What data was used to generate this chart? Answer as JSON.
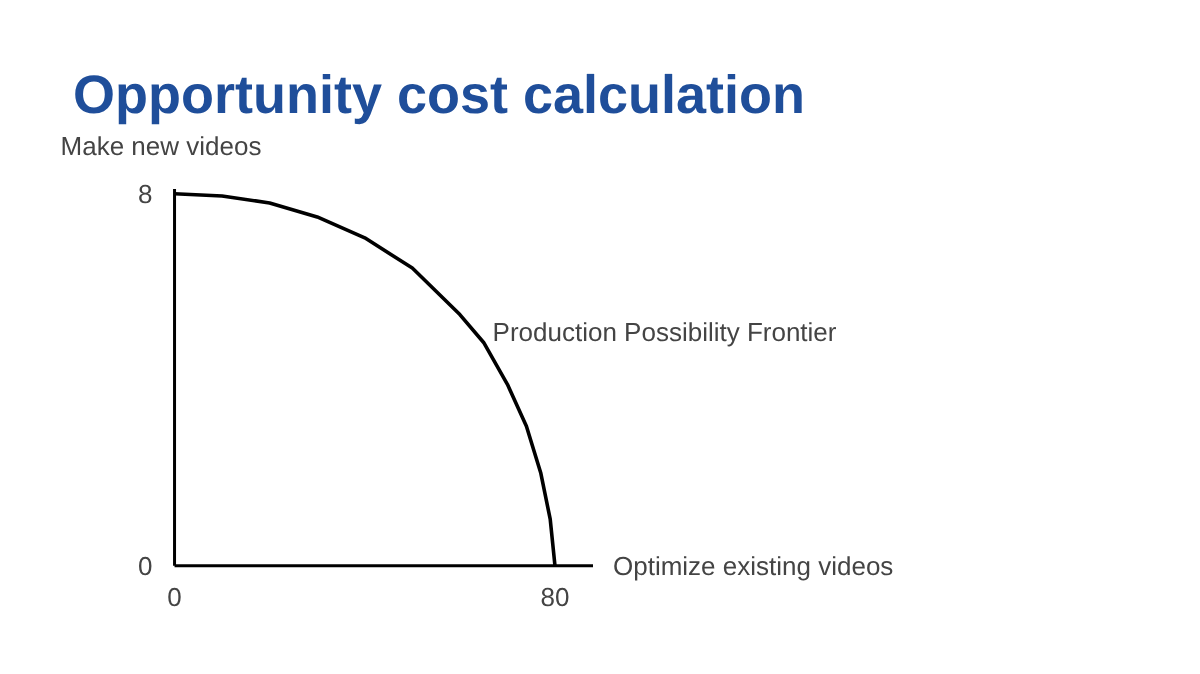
{
  "chart_data": {
    "type": "line",
    "title": "Opportunity cost calculation",
    "xlabel": "Optimize existing videos",
    "ylabel": "Make new videos",
    "x": [
      0,
      10,
      20,
      30,
      40,
      50,
      60,
      65,
      70,
      74,
      77,
      79,
      80
    ],
    "series": [
      {
        "color": "#000000",
        "values": [
          8,
          7.95,
          7.8,
          7.5,
          7.05,
          6.4,
          5.4,
          4.8,
          3.9,
          3.0,
          2.0,
          1.0,
          0
        ]
      }
    ],
    "annotations": [
      "Production Possibility Frontier"
    ],
    "xlim": [
      0,
      88
    ],
    "ylim": [
      0,
      8.1
    ],
    "xticks": [
      0,
      80
    ],
    "yticks": [
      0,
      8
    ],
    "grid": false,
    "marker": "none",
    "line_style": "solid"
  }
}
